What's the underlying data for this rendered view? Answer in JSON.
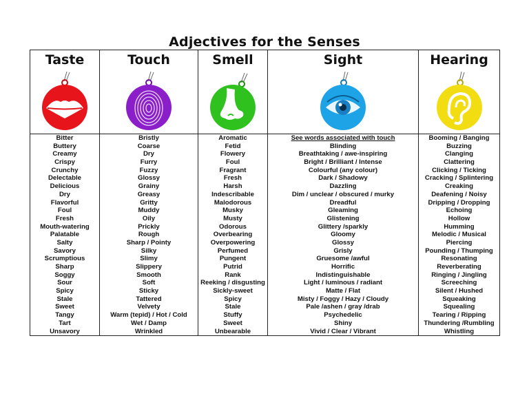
{
  "title": "Adjectives for the Senses",
  "senses": [
    {
      "name": "Taste",
      "icon": "lips-icon",
      "color": "#e8141c",
      "words": [
        "Bitter",
        "Buttery",
        "Creamy",
        "Crispy",
        "Crunchy",
        "Delectable",
        "Delicious",
        "Dry",
        "Flavorful",
        "Foul",
        "Fresh",
        "Mouth-watering",
        "Palatable",
        "Salty",
        "Savory",
        "Scrumptious",
        "Sharp",
        "Soggy",
        "Sour",
        "Spicy",
        "Stale",
        "Sweet",
        "Tangy",
        "Tart",
        "Unsavory"
      ]
    },
    {
      "name": "Touch",
      "icon": "fingerprint-icon",
      "color": "#8a1fc9",
      "words": [
        "Bristly",
        "Coarse",
        "Dry",
        "Furry",
        "Fuzzy",
        "Glossy",
        "Grainy",
        "Greasy",
        "Gritty",
        "Muddy",
        "Oily",
        "Prickly",
        "Rough",
        "Sharp / Pointy",
        "Silky",
        "Slimy",
        "Slippery",
        "Smooth",
        "Soft",
        "Sticky",
        "Tattered",
        "Velvety",
        "Warm (tepid) / Hot / Cold",
        "Wet / Damp",
        "Wrinkled"
      ]
    },
    {
      "name": "Smell",
      "icon": "nose-icon",
      "color": "#2fc21f",
      "words": [
        "Aromatic",
        "Fetid",
        "Flowery",
        "Foul",
        "Fragrant",
        "Fresh",
        "Harsh",
        "Indescribable",
        "Malodorous",
        "Musky",
        "Musty",
        "Odorous",
        "Overbearing",
        "Overpowering",
        "Perfumed",
        "Pungent",
        "Putrid",
        "Rank",
        "Reeking / disgusting",
        "Sickly-sweet",
        "Spicy",
        "Stale",
        "Stuffy",
        "Sweet",
        "Unbearable"
      ]
    },
    {
      "name": "Sight",
      "icon": "eye-icon",
      "color": "#1ea3e6",
      "words": [
        "See words associated with touch",
        "Blinding",
        "Breathtaking / awe-inspiring",
        "Bright / Brilliant / Intense",
        "Colourful (any colour)",
        "Dark / Shadowy",
        "Dazzling",
        "Dim / unclear / obscured / murky",
        "Dreadful",
        "Gleaming",
        "Glistening",
        "Glittery /sparkly",
        "Gloomy",
        "Glossy",
        "Grisly",
        "Gruesome /awful",
        "Horrific",
        "Indistinguishable",
        "Light / luminous / radiant",
        "Matte / Flat",
        "Misty / Foggy  / Hazy / Cloudy",
        "Pale /ashen / gray /drab",
        "Psychedelic",
        "Shiny",
        "Vivid / Clear / Vibrant"
      ]
    },
    {
      "name": "Hearing",
      "icon": "ear-icon",
      "color": "#f2dc12",
      "words": [
        "Booming / Banging",
        "Buzzing",
        "Clanging",
        "Clattering",
        "Clicking / Ticking",
        "Cracking / Splintering",
        "Creaking",
        "Deafening / Noisy",
        "Dripping / Dropping",
        "Echoing",
        "Hollow",
        "Humming",
        "Melodic / Musical",
        "Piercing",
        "Pounding / Thumping",
        "Resonating",
        "Reverberating",
        "Ringing / Jingling",
        "Screeching",
        "Silent / Hushed",
        "Squeaking",
        "Squealing",
        "Tearing / Ripping",
        "Thundering /Rumbling",
        "Whistling"
      ]
    }
  ]
}
